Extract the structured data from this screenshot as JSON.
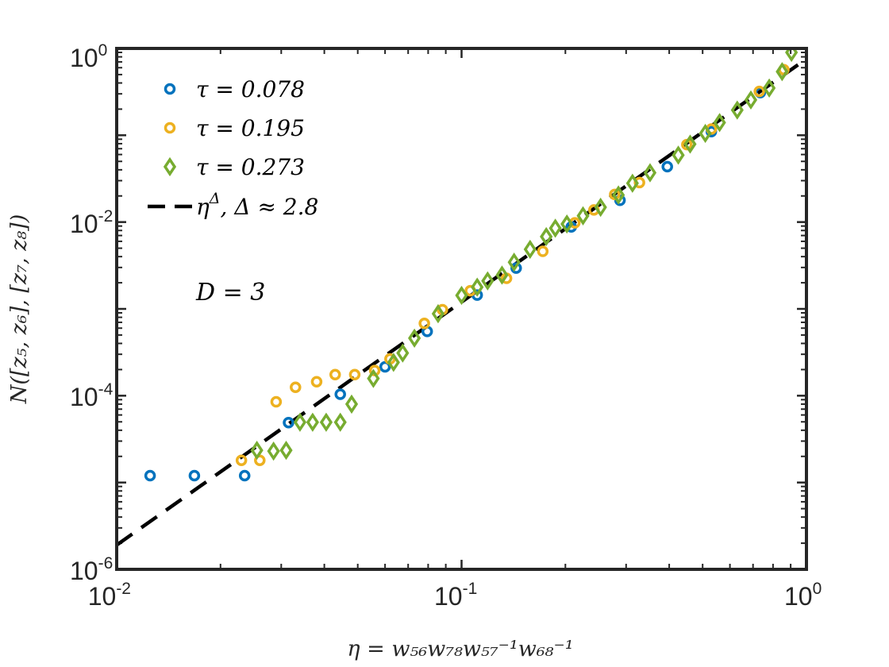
{
  "chart_data": {
    "type": "scatter",
    "xscale": "log",
    "yscale": "log",
    "xlim": [
      0.01,
      1
    ],
    "ylim": [
      1e-06,
      1
    ],
    "x_ticks": [
      {
        "base": "10",
        "exp": "-2"
      },
      {
        "base": "10",
        "exp": "-1"
      },
      {
        "base": "10",
        "exp": "0"
      }
    ],
    "y_ticks": [
      {
        "base": "10",
        "exp": "-6"
      },
      {
        "base": "10",
        "exp": "-4"
      },
      {
        "base": "10",
        "exp": "-2"
      },
      {
        "base": "10",
        "exp": "0"
      }
    ],
    "xlabel": "η = w₅₆w₇₈w₅₇⁻¹w₆₈⁻¹",
    "ylabel": "N([z₅, z₆], [z₇, z₈])",
    "annotation": "D = 3",
    "grid": false,
    "legend_position": "top-left",
    "series": [
      {
        "name": "τ = 0.078",
        "marker": "circle",
        "color": "#0072BD",
        "points": [
          [
            0.0125,
            1.2e-05
          ],
          [
            0.0168,
            1.2e-05
          ],
          [
            0.0235,
            1.2e-05
          ],
          [
            0.0315,
            4.9e-05
          ],
          [
            0.0445,
            0.000104
          ],
          [
            0.06,
            0.000215
          ],
          [
            0.0795,
            0.00055
          ],
          [
            0.111,
            0.00144
          ],
          [
            0.144,
            0.00295
          ],
          [
            0.208,
            0.0088
          ],
          [
            0.288,
            0.0178
          ],
          [
            0.395,
            0.0435
          ],
          [
            0.53,
            0.11
          ],
          [
            0.735,
            0.31
          ]
        ]
      },
      {
        "name": "τ = 0.195",
        "marker": "circle",
        "color": "#EDB120",
        "points": [
          [
            0.023,
            1.8e-05
          ],
          [
            0.026,
            1.8e-05
          ],
          [
            0.029,
            8.5e-05
          ],
          [
            0.033,
            0.000125
          ],
          [
            0.038,
            0.000145
          ],
          [
            0.043,
            0.000175
          ],
          [
            0.049,
            0.000175
          ],
          [
            0.056,
            0.000195
          ],
          [
            0.062,
            0.000265
          ],
          [
            0.078,
            0.00068
          ],
          [
            0.088,
            0.00098
          ],
          [
            0.106,
            0.00162
          ],
          [
            0.135,
            0.00225
          ],
          [
            0.172,
            0.0046
          ],
          [
            0.213,
            0.0098
          ],
          [
            0.242,
            0.0138
          ],
          [
            0.278,
            0.0208
          ],
          [
            0.328,
            0.0285
          ],
          [
            0.45,
            0.078
          ],
          [
            0.53,
            0.118
          ],
          [
            0.73,
            0.32
          ],
          [
            0.86,
            0.57
          ]
        ]
      },
      {
        "name": "τ = 0.273",
        "marker": "diamond",
        "color": "#77AC30",
        "points": [
          [
            0.0255,
            2.35e-05
          ],
          [
            0.0285,
            2.3e-05
          ],
          [
            0.031,
            2.35e-05
          ],
          [
            0.034,
            4.95e-05
          ],
          [
            0.037,
            4.95e-05
          ],
          [
            0.0405,
            4.95e-05
          ],
          [
            0.0445,
            4.95e-05
          ],
          [
            0.048,
            8e-05
          ],
          [
            0.0555,
            0.000158
          ],
          [
            0.0635,
            0.000242
          ],
          [
            0.0675,
            0.00031
          ],
          [
            0.073,
            0.00046
          ],
          [
            0.0855,
            0.00088
          ],
          [
            0.1,
            0.00143
          ],
          [
            0.111,
            0.00178
          ],
          [
            0.119,
            0.0021
          ],
          [
            0.131,
            0.00245
          ],
          [
            0.142,
            0.00345
          ],
          [
            0.158,
            0.00485
          ],
          [
            0.176,
            0.0068
          ],
          [
            0.187,
            0.0085
          ],
          [
            0.202,
            0.0095
          ],
          [
            0.225,
            0.0118
          ],
          [
            0.253,
            0.0148
          ],
          [
            0.285,
            0.0205
          ],
          [
            0.313,
            0.028
          ],
          [
            0.352,
            0.037
          ],
          [
            0.425,
            0.059
          ],
          [
            0.46,
            0.079
          ],
          [
            0.509,
            0.105
          ],
          [
            0.56,
            0.14
          ],
          [
            0.63,
            0.195
          ],
          [
            0.69,
            0.255
          ],
          [
            0.78,
            0.35
          ],
          [
            0.85,
            0.54
          ],
          [
            0.905,
            0.9
          ]
        ]
      }
    ],
    "fit_line": {
      "name": "η^Δ,  Δ ≈ 2.8",
      "label_eta": "η",
      "label_sup": "Δ",
      "label_rest": ",  Δ ≈ 2.8",
      "style": "dashed",
      "color": "#000000",
      "slope": 2.8,
      "intercept_log10": -0.12
    }
  }
}
